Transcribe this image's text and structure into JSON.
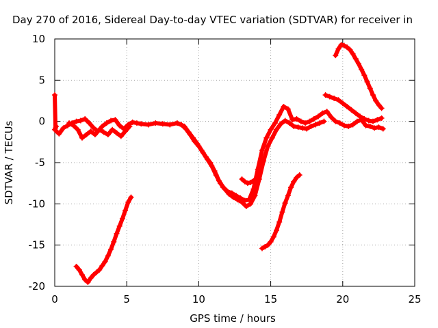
{
  "chart_data": {
    "type": "scatter",
    "title": "Day 270 of 2016, Sidereal Day-to-day VTEC variation (SDTVAR) for receiver in",
    "xlabel": "GPS time / hours",
    "ylabel": "SDTVAR / TECUs",
    "xlim": [
      0,
      25
    ],
    "ylim": [
      -20,
      10
    ],
    "xticks": [
      "0",
      "5",
      "10",
      "15",
      "20",
      "25"
    ],
    "yticks": [
      "-20",
      "-15",
      "-10",
      "-5",
      "0",
      "5",
      "10"
    ],
    "grid": true,
    "color": "#ff0000",
    "marker": "plus",
    "series": [
      {
        "x": [
          0.0,
          0.3,
          0.6,
          0.9,
          1.2,
          1.5,
          1.8,
          2.1,
          2.4,
          2.7,
          3.0,
          3.3,
          3.6,
          3.9,
          4.2,
          4.5,
          4.8,
          5.1,
          5.4,
          5.7,
          6.0,
          6.5,
          7.0,
          7.5,
          8.0,
          8.5,
          9.0,
          9.3,
          9.6,
          9.9,
          10.2,
          10.5,
          10.8,
          11.1,
          11.4,
          11.7,
          12.0,
          12.3,
          12.6,
          12.9,
          13.2,
          13.5,
          13.8,
          14.1,
          14.4,
          14.7,
          15.0,
          15.3,
          15.6,
          15.9,
          16.2,
          16.5,
          16.8,
          17.1,
          17.4,
          17.7,
          18.0,
          18.3,
          18.6,
          18.9,
          19.2,
          19.5,
          19.8,
          20.1,
          20.4,
          20.7,
          21.0,
          21.3,
          21.6,
          21.9,
          22.2,
          22.5,
          22.8
        ],
        "y": [
          -1.0,
          -1.5,
          -0.8,
          -0.5,
          -0.2,
          0.0,
          0.1,
          0.3,
          -0.2,
          -0.8,
          -1.2,
          -0.6,
          -0.2,
          0.1,
          0.2,
          -0.5,
          -0.9,
          -0.4,
          -0.1,
          -0.2,
          -0.3,
          -0.4,
          -0.2,
          -0.3,
          -0.4,
          -0.2,
          -0.6,
          -1.3,
          -2.0,
          -2.7,
          -3.5,
          -4.3,
          -5.0,
          -6.0,
          -7.2,
          -8.0,
          -8.5,
          -8.7,
          -9.0,
          -9.3,
          -9.6,
          -9.5,
          -8.2,
          -5.8,
          -3.5,
          -2.0,
          -1.0,
          -0.2,
          0.8,
          1.8,
          1.5,
          0.2,
          0.3,
          0.0,
          -0.2,
          0.0,
          0.3,
          0.6,
          1.0,
          1.2,
          0.5,
          0.0,
          -0.2,
          -0.5,
          -0.6,
          -0.4,
          0.0,
          0.2,
          -0.5,
          -0.6,
          -0.8,
          -0.7,
          -0.9
        ]
      },
      {
        "x": [
          1.0,
          1.3,
          1.6,
          1.9,
          2.2,
          2.5,
          2.8,
          3.1,
          3.4,
          3.7,
          4.0,
          4.3,
          4.6,
          4.9,
          5.2
        ],
        "y": [
          -0.2,
          -0.5,
          -1.0,
          -2.0,
          -1.6,
          -1.2,
          -1.6,
          -1.0,
          -1.3,
          -1.6,
          -1.0,
          -1.4,
          -1.8,
          -1.2,
          -0.6
        ]
      },
      {
        "x": [
          8.5,
          8.8,
          9.1,
          9.4,
          9.7,
          10.0,
          10.3,
          10.6,
          10.9,
          11.2,
          11.5,
          11.8,
          12.1,
          12.4,
          12.7,
          13.0,
          13.3,
          13.6,
          13.9,
          14.2,
          14.5,
          14.8,
          15.1,
          15.4,
          15.7,
          16.0,
          16.3,
          16.6,
          16.9,
          17.2,
          17.5,
          17.8,
          18.1,
          18.4,
          18.7
        ],
        "y": [
          -0.2,
          -0.4,
          -0.9,
          -1.6,
          -2.4,
          -3.0,
          -3.8,
          -4.6,
          -5.4,
          -6.5,
          -7.5,
          -8.2,
          -8.8,
          -9.2,
          -9.5,
          -9.8,
          -10.3,
          -10.0,
          -9.0,
          -7.0,
          -4.8,
          -3.0,
          -2.0,
          -1.0,
          -0.3,
          0.1,
          -0.2,
          -0.6,
          -0.7,
          -0.8,
          -0.9,
          -0.6,
          -0.4,
          -0.2,
          0.0
        ]
      },
      {
        "x": [
          1.5,
          1.7,
          1.9,
          2.1,
          2.3,
          2.5,
          2.7,
          2.9,
          3.1,
          3.3,
          3.5,
          3.7,
          3.9,
          4.1,
          4.3,
          4.5,
          4.7,
          4.9,
          5.1,
          5.3
        ],
        "y": [
          -17.6,
          -18.0,
          -18.6,
          -19.2,
          -19.5,
          -19.0,
          -18.6,
          -18.3,
          -18.0,
          -17.5,
          -17.0,
          -16.3,
          -15.5,
          -14.6,
          -13.6,
          -12.7,
          -11.8,
          -10.8,
          -9.8,
          -9.2
        ]
      },
      {
        "x": [
          14.4,
          14.6,
          14.8,
          15.0,
          15.2,
          15.4,
          15.6,
          15.8,
          16.0,
          16.2,
          16.4,
          16.6,
          16.8,
          17.0
        ],
        "y": [
          -15.4,
          -15.2,
          -15.0,
          -14.6,
          -14.0,
          -13.2,
          -12.2,
          -11.0,
          -9.9,
          -9.0,
          -8.0,
          -7.3,
          -6.8,
          -6.5
        ]
      },
      {
        "x": [
          19.5,
          19.7,
          19.9,
          20.1,
          20.3,
          20.5,
          20.7,
          20.9,
          21.1,
          21.3,
          21.5,
          21.7,
          21.9,
          22.1,
          22.3,
          22.5,
          22.7
        ],
        "y": [
          8.0,
          8.8,
          9.3,
          9.2,
          9.0,
          8.7,
          8.2,
          7.6,
          7.0,
          6.3,
          5.6,
          4.8,
          4.0,
          3.2,
          2.5,
          2.0,
          1.6
        ]
      },
      {
        "x": [
          18.8,
          19.1,
          19.4,
          19.7,
          20.0,
          20.3,
          20.6,
          20.9,
          21.2,
          21.5,
          21.8,
          22.1,
          22.4,
          22.7
        ],
        "y": [
          3.2,
          3.0,
          2.8,
          2.6,
          2.2,
          1.8,
          1.4,
          1.0,
          0.6,
          0.3,
          0.1,
          0.0,
          0.2,
          0.4
        ]
      },
      {
        "x": [
          13.0,
          13.2,
          13.4,
          13.6,
          13.8
        ],
        "y": [
          -7.0,
          -7.3,
          -7.5,
          -7.4,
          -7.2
        ]
      },
      {
        "x": [
          0.0,
          0.05,
          0.1
        ],
        "y": [
          3.2,
          -0.8,
          -0.6
        ]
      }
    ]
  }
}
